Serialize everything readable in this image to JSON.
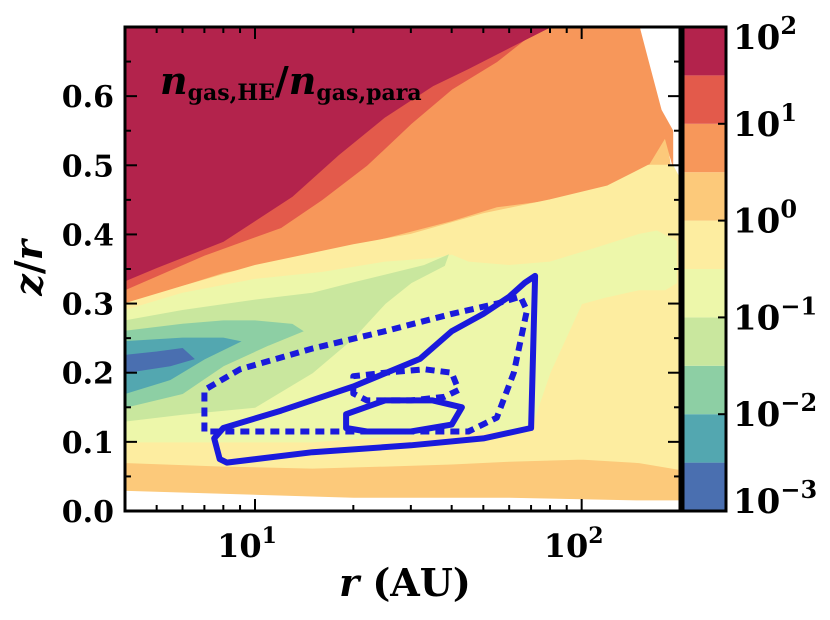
{
  "chart_data": {
    "type": "contour",
    "title": "",
    "annotation": {
      "main": "n",
      "sub1": "gas,HE",
      "slash": "/",
      "main2": "n",
      "sub2": "gas,para"
    },
    "xlabel": {
      "var": "r",
      "unit": "(AU)"
    },
    "ylabel": {
      "var1": "z",
      "slash": "/",
      "var2": "r"
    },
    "xscale": "log",
    "xlim": [
      4,
      200
    ],
    "ylim": [
      0.0,
      0.7
    ],
    "x_ticks": [
      {
        "value": 10,
        "base": "10",
        "exp": "1"
      },
      {
        "value": 100,
        "base": "10",
        "exp": "2"
      }
    ],
    "y_ticks": [
      {
        "value": 0.0,
        "label": "0.0"
      },
      {
        "value": 0.1,
        "label": "0.1"
      },
      {
        "value": 0.2,
        "label": "0.2"
      },
      {
        "value": 0.3,
        "label": "0.3"
      },
      {
        "value": 0.4,
        "label": "0.4"
      },
      {
        "value": 0.5,
        "label": "0.5"
      },
      {
        "value": 0.6,
        "label": "0.6"
      }
    ],
    "colorbar": {
      "scale": "log",
      "range_exp": [
        -3,
        2
      ],
      "levels_exp": [
        -3,
        -2.5,
        -2,
        -1.5,
        -1,
        -0.5,
        0,
        0.5,
        1,
        1.5,
        2
      ],
      "colors": [
        "#4a6fb0",
        "#53a7b0",
        "#8dcfa4",
        "#c9e79e",
        "#edf7aa",
        "#fdeda0",
        "#fcc97a",
        "#f7975a",
        "#e35a4b",
        "#b3234c"
      ],
      "ticks": [
        {
          "exp_value": -3,
          "base": "10",
          "exp": "−3"
        },
        {
          "exp_value": -2,
          "base": "10",
          "exp": "−2"
        },
        {
          "exp_value": -1,
          "base": "10",
          "exp": "−1"
        },
        {
          "exp_value": 0,
          "base": "10",
          "exp": "0"
        },
        {
          "exp_value": 1,
          "base": "10",
          "exp": "1"
        },
        {
          "exp_value": 2,
          "base": "10",
          "exp": "2"
        }
      ]
    },
    "filled_regions": [
      {
        "level": 1,
        "color": "#fcc97a",
        "points": [
          [
            4,
            0
          ],
          [
            4,
            0.33
          ],
          [
            5,
            0.35
          ],
          [
            7,
            0.385
          ],
          [
            12,
            0.42
          ],
          [
            18,
            0.48
          ],
          [
            25,
            0.55
          ],
          [
            35,
            0.6
          ],
          [
            45,
            0.635
          ],
          [
            60,
            0.67
          ],
          [
            80,
            0.7
          ],
          [
            150,
            0.7
          ],
          [
            165,
            0.62
          ],
          [
            180,
            0.56
          ],
          [
            190,
            0.47
          ],
          [
            200,
            0.4
          ],
          [
            200,
            0.016
          ],
          [
            150,
            0.016
          ],
          [
            60,
            0.02
          ],
          [
            20,
            0.02
          ],
          [
            4,
            0.03
          ]
        ]
      },
      {
        "level": 2,
        "color": "#f7975a",
        "points": [
          [
            4,
            0.32
          ],
          [
            5,
            0.34
          ],
          [
            7,
            0.37
          ],
          [
            12,
            0.41
          ],
          [
            16,
            0.45
          ],
          [
            22,
            0.5
          ],
          [
            30,
            0.56
          ],
          [
            40,
            0.61
          ],
          [
            55,
            0.65
          ],
          [
            75,
            0.7
          ],
          [
            150,
            0.7
          ],
          [
            160,
            0.65
          ],
          [
            175,
            0.58
          ],
          [
            190,
            0.55
          ],
          [
            190,
            0.5
          ],
          [
            180,
            0.54
          ],
          [
            160,
            0.5
          ],
          [
            140,
            0.48
          ],
          [
            110,
            0.46
          ],
          [
            80,
            0.45
          ],
          [
            55,
            0.44
          ],
          [
            40,
            0.42
          ],
          [
            25,
            0.395
          ],
          [
            15,
            0.37
          ],
          [
            8,
            0.345
          ],
          [
            4,
            0.3
          ]
        ]
      },
      {
        "level": 3,
        "color": "#fdeda0",
        "points": [
          [
            4,
            0.3
          ],
          [
            6,
            0.325
          ],
          [
            10,
            0.355
          ],
          [
            20,
            0.385
          ],
          [
            30,
            0.4
          ],
          [
            50,
            0.43
          ],
          [
            80,
            0.45
          ],
          [
            120,
            0.47
          ],
          [
            160,
            0.5
          ],
          [
            190,
            0.5
          ],
          [
            200,
            0.48
          ],
          [
            200,
            0.06
          ],
          [
            150,
            0.07
          ],
          [
            100,
            0.075
          ],
          [
            60,
            0.072
          ],
          [
            40,
            0.068
          ],
          [
            25,
            0.065
          ],
          [
            15,
            0.062
          ],
          [
            8,
            0.065
          ],
          [
            4,
            0.07
          ]
        ]
      },
      {
        "level": 4,
        "color": "#edf7aa",
        "points": [
          [
            4,
            0.29
          ],
          [
            6,
            0.315
          ],
          [
            10,
            0.335
          ],
          [
            16,
            0.345
          ],
          [
            25,
            0.36
          ],
          [
            35,
            0.365
          ],
          [
            40,
            0.37
          ],
          [
            45,
            0.36
          ],
          [
            60,
            0.355
          ],
          [
            80,
            0.36
          ],
          [
            110,
            0.38
          ],
          [
            150,
            0.4
          ],
          [
            170,
            0.405
          ],
          [
            195,
            0.39
          ],
          [
            195,
            0.33
          ],
          [
            180,
            0.32
          ],
          [
            150,
            0.32
          ],
          [
            120,
            0.31
          ],
          [
            100,
            0.3
          ],
          [
            80,
            0.2
          ],
          [
            70,
            0.12
          ],
          [
            50,
            0.115
          ],
          [
            30,
            0.11
          ],
          [
            15,
            0.1
          ],
          [
            8,
            0.1
          ],
          [
            4,
            0.1
          ]
        ]
      },
      {
        "level": 5,
        "color": "#c9e79e",
        "points": [
          [
            4,
            0.275
          ],
          [
            6,
            0.29
          ],
          [
            10,
            0.305
          ],
          [
            15,
            0.315
          ],
          [
            20,
            0.33
          ],
          [
            27,
            0.345
          ],
          [
            33,
            0.355
          ],
          [
            39,
            0.37
          ],
          [
            38,
            0.355
          ],
          [
            30,
            0.33
          ],
          [
            25,
            0.3
          ],
          [
            20,
            0.25
          ],
          [
            15,
            0.2
          ],
          [
            10,
            0.15
          ],
          [
            6,
            0.14
          ],
          [
            4,
            0.13
          ]
        ]
      },
      {
        "level": 6,
        "color": "#8dcfa4",
        "points": [
          [
            4,
            0.26
          ],
          [
            6,
            0.27
          ],
          [
            8,
            0.275
          ],
          [
            10,
            0.275
          ],
          [
            13,
            0.27
          ],
          [
            14,
            0.26
          ],
          [
            11,
            0.24
          ],
          [
            8,
            0.21
          ],
          [
            6,
            0.17
          ],
          [
            4,
            0.15
          ]
        ]
      },
      {
        "level": 7,
        "color": "#53a7b0",
        "points": [
          [
            4,
            0.245
          ],
          [
            6,
            0.25
          ],
          [
            8,
            0.25
          ],
          [
            9,
            0.245
          ],
          [
            7,
            0.22
          ],
          [
            5.5,
            0.19
          ],
          [
            4,
            0.17
          ]
        ]
      },
      {
        "level": 8,
        "color": "#4a6fb0",
        "points": [
          [
            4,
            0.225
          ],
          [
            5,
            0.23
          ],
          [
            6,
            0.235
          ],
          [
            6.5,
            0.22
          ],
          [
            5.5,
            0.21
          ],
          [
            4,
            0.2
          ]
        ]
      },
      {
        "level": 9,
        "color": "#e35a4b",
        "points": [
          [
            4,
            0.32
          ],
          [
            5,
            0.34
          ],
          [
            7,
            0.37
          ],
          [
            12,
            0.41
          ],
          [
            16,
            0.45
          ],
          [
            22,
            0.5
          ],
          [
            30,
            0.56
          ],
          [
            40,
            0.61
          ],
          [
            55,
            0.65
          ],
          [
            75,
            0.7
          ],
          [
            80,
            0.7
          ],
          [
            62,
            0.675
          ],
          [
            45,
            0.645
          ],
          [
            35,
            0.62
          ],
          [
            25,
            0.575
          ],
          [
            18,
            0.52
          ],
          [
            13,
            0.46
          ],
          [
            8,
            0.395
          ],
          [
            5,
            0.355
          ],
          [
            4,
            0.335
          ]
        ]
      },
      {
        "level": 10,
        "color": "#b3234c",
        "points": [
          [
            4,
            0.333
          ],
          [
            5,
            0.352
          ],
          [
            8,
            0.39
          ],
          [
            13,
            0.455
          ],
          [
            18,
            0.515
          ],
          [
            25,
            0.57
          ],
          [
            35,
            0.615
          ],
          [
            45,
            0.64
          ],
          [
            60,
            0.67
          ],
          [
            80,
            0.7
          ],
          [
            4,
            0.7
          ]
        ]
      }
    ],
    "contours": [
      {
        "style": "solid",
        "color": "#1a1adc",
        "points": [
          [
            7.5,
            0.105
          ],
          [
            7.8,
            0.075
          ],
          [
            8.2,
            0.07
          ],
          [
            15,
            0.085
          ],
          [
            30,
            0.095
          ],
          [
            50,
            0.105
          ],
          [
            70,
            0.12
          ],
          [
            72,
            0.34
          ],
          [
            67,
            0.33
          ],
          [
            60,
            0.31
          ],
          [
            50,
            0.285
          ],
          [
            40,
            0.26
          ],
          [
            32,
            0.22
          ],
          [
            20,
            0.18
          ],
          [
            12,
            0.145
          ],
          [
            8,
            0.12
          ],
          [
            7.5,
            0.105
          ]
        ]
      },
      {
        "style": "solid",
        "color": "#1a1adc",
        "points": [
          [
            19,
            0.12
          ],
          [
            22,
            0.115
          ],
          [
            30,
            0.115
          ],
          [
            40,
            0.125
          ],
          [
            43,
            0.15
          ],
          [
            35,
            0.16
          ],
          [
            25,
            0.16
          ],
          [
            19,
            0.14
          ],
          [
            19,
            0.12
          ]
        ]
      },
      {
        "style": "dotted",
        "color": "#1a1adc",
        "points": [
          [
            7,
            0.115
          ],
          [
            7,
            0.175
          ],
          [
            9,
            0.205
          ],
          [
            15,
            0.235
          ],
          [
            25,
            0.26
          ],
          [
            40,
            0.285
          ],
          [
            55,
            0.3
          ],
          [
            65,
            0.31
          ],
          [
            68,
            0.29
          ],
          [
            62,
            0.2
          ],
          [
            55,
            0.135
          ],
          [
            45,
            0.115
          ],
          [
            30,
            0.115
          ],
          [
            20,
            0.115
          ],
          [
            10,
            0.115
          ],
          [
            7,
            0.115
          ]
        ]
      },
      {
        "style": "dotted",
        "color": "#1a1adc",
        "points": [
          [
            20,
            0.17
          ],
          [
            20,
            0.195
          ],
          [
            25,
            0.2
          ],
          [
            33,
            0.205
          ],
          [
            40,
            0.2
          ],
          [
            42,
            0.175
          ],
          [
            38,
            0.165
          ],
          [
            30,
            0.16
          ],
          [
            22,
            0.16
          ],
          [
            20,
            0.17
          ]
        ]
      }
    ]
  }
}
